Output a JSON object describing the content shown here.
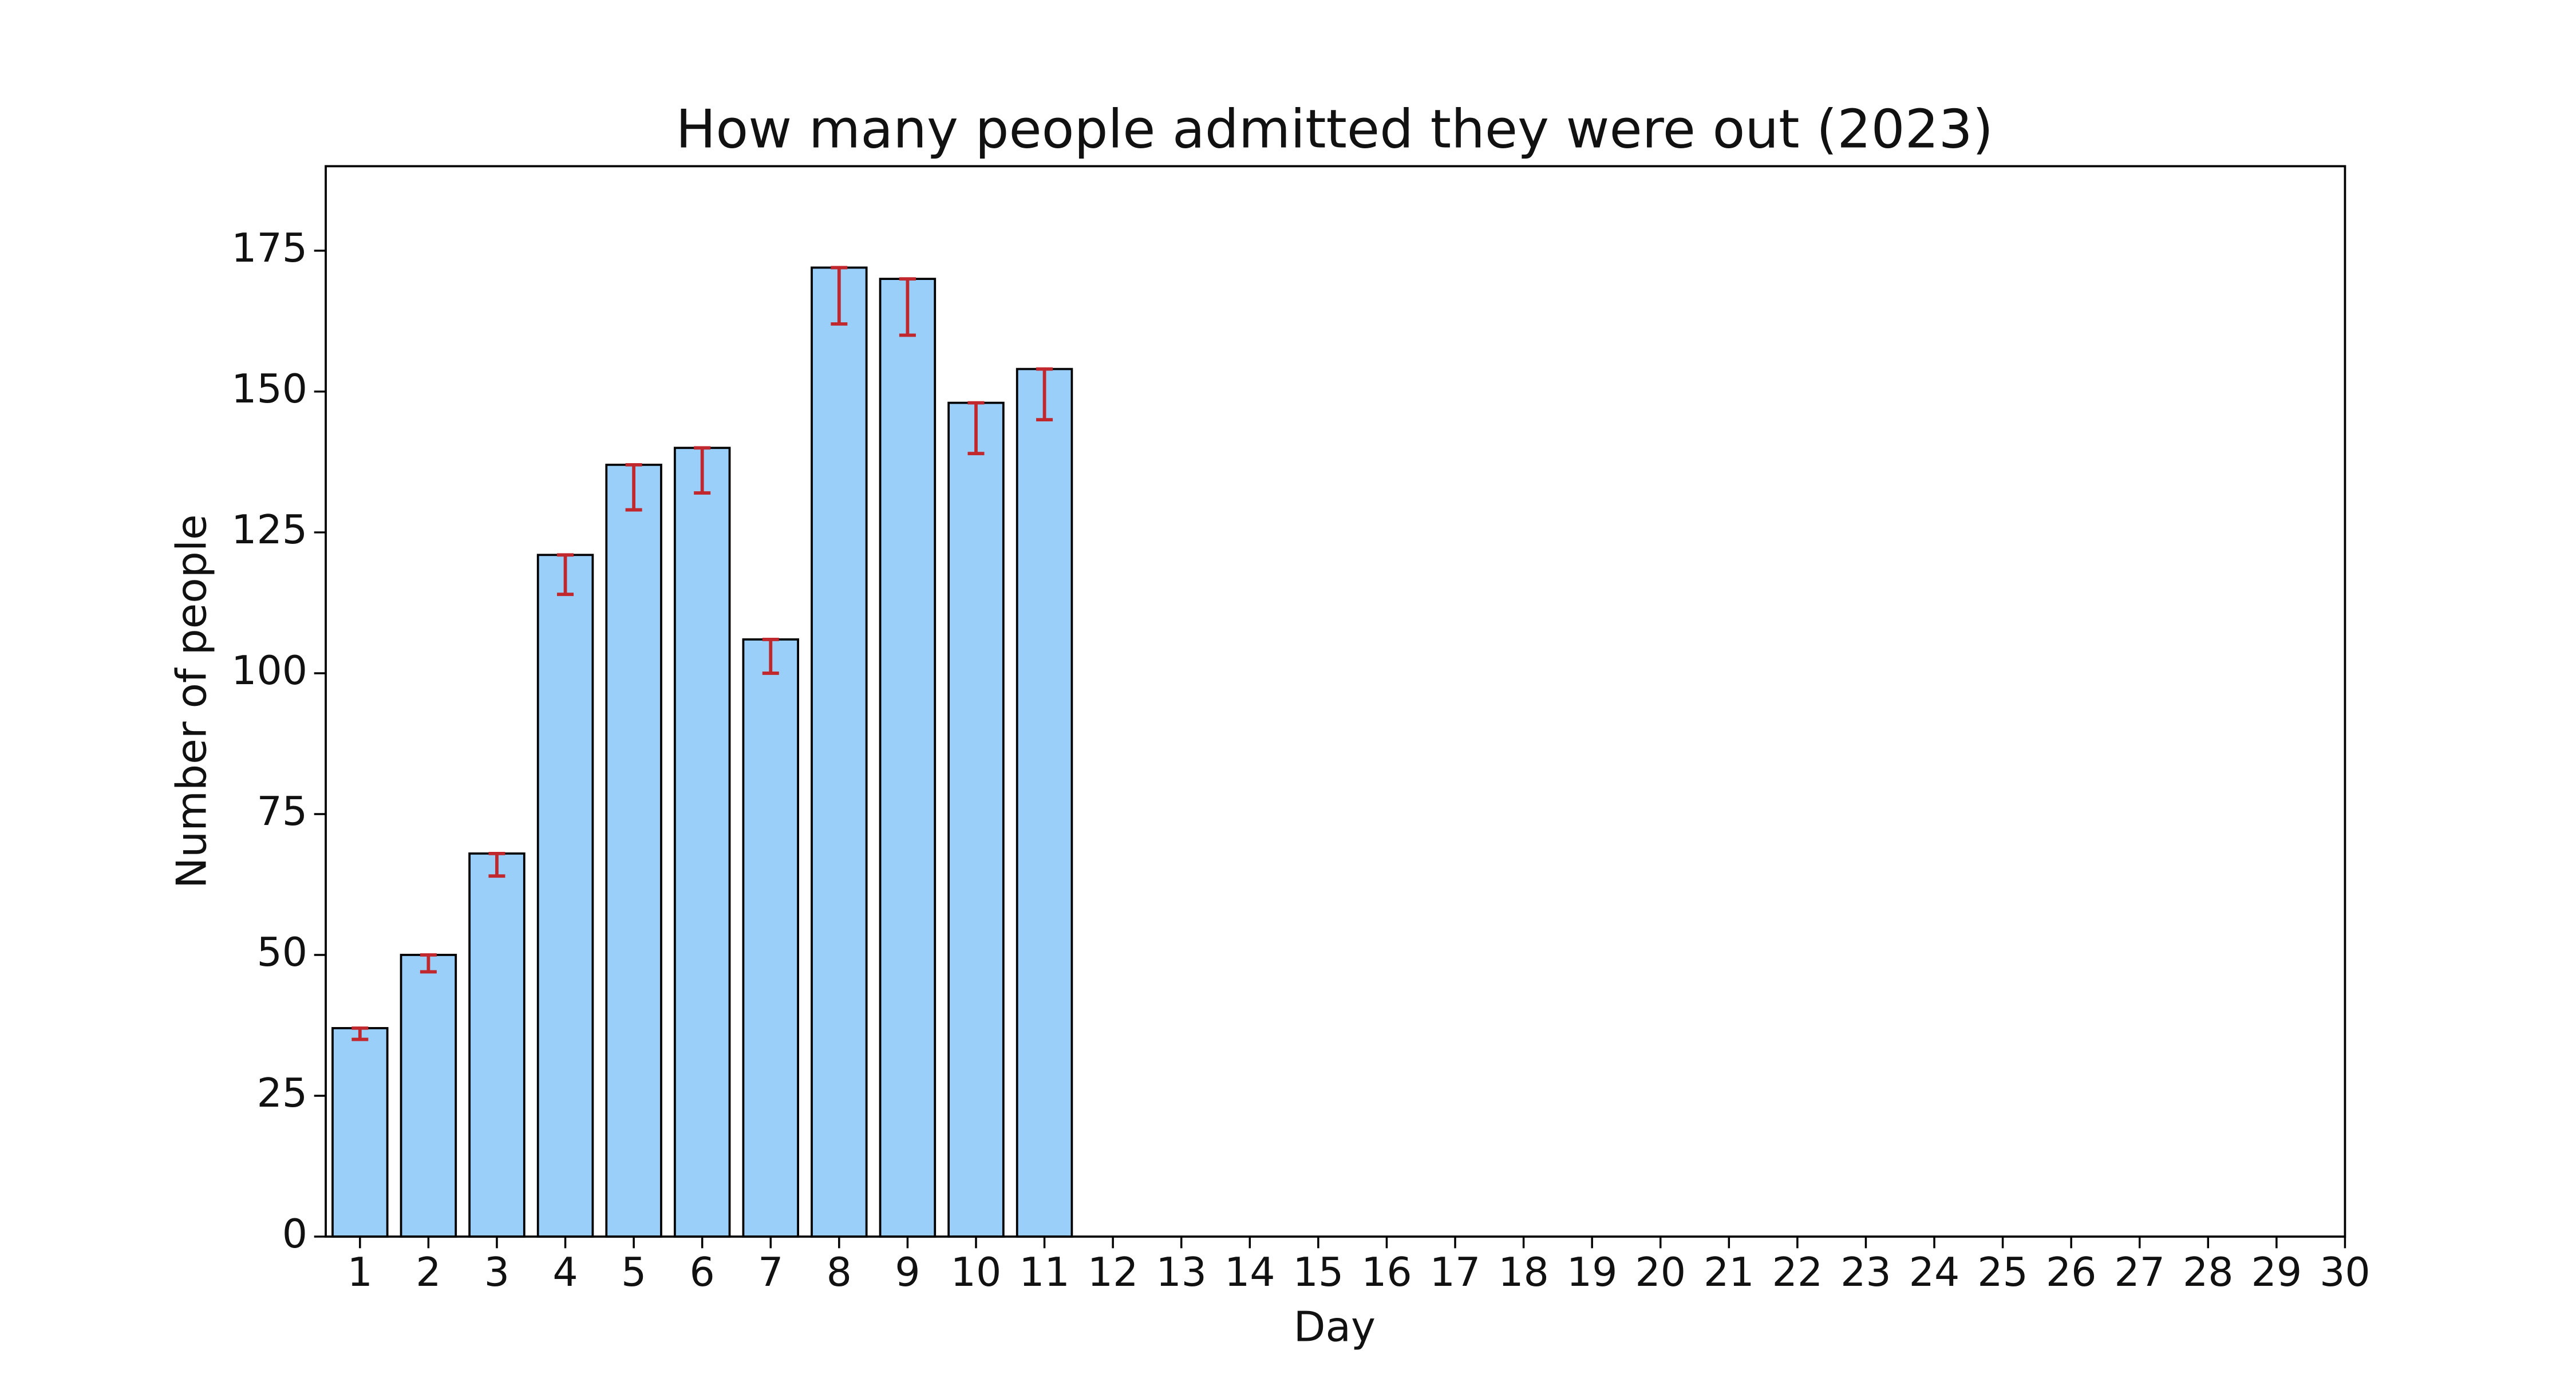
{
  "chart_data": {
    "type": "bar",
    "title": "How many people admitted they were out (2023)",
    "x_label": "Day",
    "y_label": "Number of people",
    "x": [
      1,
      2,
      3,
      4,
      5,
      6,
      7,
      8,
      9,
      10,
      11,
      12,
      13,
      14,
      15,
      16,
      17,
      18,
      19,
      20,
      21,
      22,
      23,
      24,
      25,
      26,
      27,
      28,
      29,
      30
    ],
    "values": [
      37,
      50,
      68,
      121,
      137,
      140,
      106,
      172,
      170,
      148,
      154,
      null,
      null,
      null,
      null,
      null,
      null,
      null,
      null,
      null,
      null,
      null,
      null,
      null,
      null,
      null,
      null,
      null,
      null,
      null
    ],
    "error_lower": [
      2,
      3,
      4,
      7,
      8,
      8,
      6,
      10,
      10,
      9,
      9,
      null,
      null,
      null,
      null,
      null,
      null,
      null,
      null,
      null,
      null,
      null,
      null,
      null,
      null,
      null,
      null,
      null,
      null,
      null
    ],
    "color": "#9acffa",
    "error_color": "#c0282d",
    "xlim": [
      0.5,
      30
    ],
    "ylim": [
      0,
      190
    ],
    "yticks": [
      0,
      25,
      50,
      75,
      100,
      125,
      150,
      175
    ]
  }
}
